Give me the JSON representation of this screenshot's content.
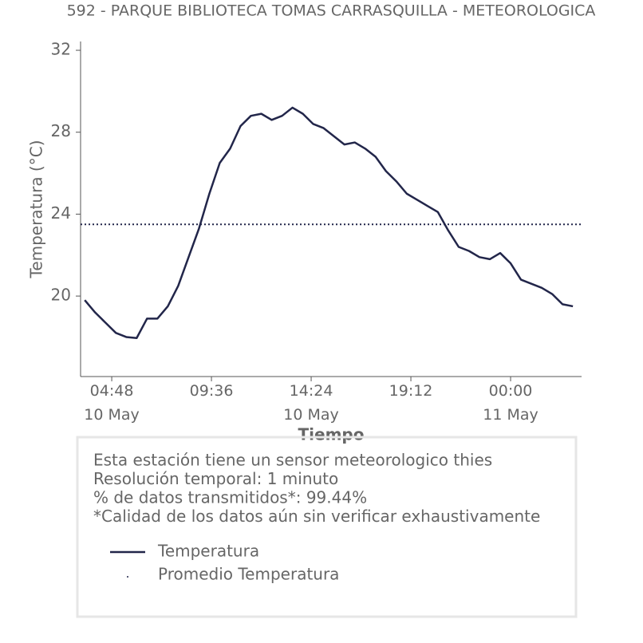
{
  "chart_data": {
    "type": "line",
    "title": "592 - PARQUE BIBLIOTECA TOMAS CARRASQUILLA - METEOROLOGICA",
    "x_label": "Tiempo",
    "y_label": "Temperatura (°C)",
    "x": [
      "10 May 03:30",
      "10 May 04:00",
      "10 May 04:30",
      "10 May 05:00",
      "10 May 05:30",
      "10 May 06:00",
      "10 May 06:30",
      "10 May 07:00",
      "10 May 07:30",
      "10 May 08:00",
      "10 May 08:30",
      "10 May 09:00",
      "10 May 09:30",
      "10 May 10:00",
      "10 May 10:30",
      "10 May 11:00",
      "10 May 11:30",
      "10 May 12:00",
      "10 May 12:30",
      "10 May 13:00",
      "10 May 13:30",
      "10 May 14:00",
      "10 May 14:30",
      "10 May 15:00",
      "10 May 15:30",
      "10 May 16:00",
      "10 May 16:30",
      "10 May 17:00",
      "10 May 17:30",
      "10 May 18:00",
      "10 May 18:30",
      "10 May 19:00",
      "10 May 19:30",
      "10 May 20:00",
      "10 May 20:30",
      "10 May 21:00",
      "10 May 21:30",
      "10 May 22:00",
      "10 May 22:30",
      "10 May 23:00",
      "10 May 23:30",
      "11 May 00:00",
      "11 May 00:30",
      "11 May 01:00",
      "11 May 01:30",
      "11 May 02:00",
      "11 May 02:30",
      "11 May 03:00"
    ],
    "series": [
      {
        "name": "Temperatura",
        "color": "#22264a",
        "style": "solid",
        "values": [
          19.8,
          19.2,
          18.7,
          18.2,
          18.0,
          17.95,
          18.9,
          18.9,
          19.5,
          20.5,
          21.9,
          23.3,
          25.0,
          26.5,
          27.2,
          28.3,
          28.8,
          28.9,
          28.6,
          28.8,
          29.2,
          28.9,
          28.4,
          28.2,
          27.8,
          27.4,
          27.5,
          27.2,
          26.8,
          26.1,
          25.6,
          25.0,
          24.7,
          24.4,
          24.1,
          23.2,
          22.4,
          22.2,
          21.9,
          21.8,
          22.1,
          21.6,
          20.8,
          20.6,
          20.4,
          20.1,
          19.6,
          19.5
        ]
      },
      {
        "name": "Promedio Temperatura",
        "color": "#22264a",
        "style": "dotted",
        "value": 23.5
      }
    ],
    "xlim": [
      "10 May 03:18",
      "11 May 03:25"
    ],
    "xticks": [
      {
        "value": "10 May 04:48",
        "label": "04:48\n10 May"
      },
      {
        "value": "10 May 09:36",
        "label": "09:36"
      },
      {
        "value": "10 May 14:24",
        "label": "14:24\n10 May"
      },
      {
        "value": "10 May 19:12",
        "label": "19:12"
      },
      {
        "value": "11 May 00:00",
        "label": "00:00\n11 May"
      }
    ],
    "ylim": [
      16.07,
      32.43
    ],
    "yticks": [
      20,
      24,
      28,
      32
    ],
    "info": [
      "Esta estación tiene un sensor meteorologico thies",
      "Resolución temporal: 1 minuto",
      "% de datos transmitidos*: 99.44%",
      "*Calidad de los datos aún sin verificar exhaustivamente"
    ]
  }
}
